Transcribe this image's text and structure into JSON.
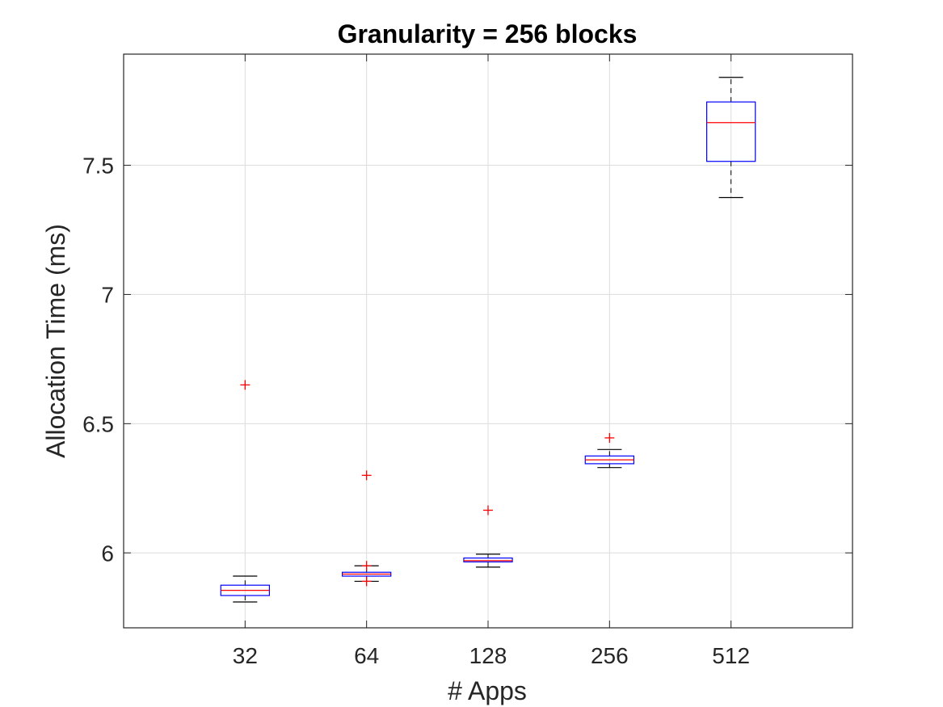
{
  "chart_data": {
    "type": "box",
    "title": "Granularity = 256 blocks",
    "xlabel": "# Apps",
    "ylabel": "Allocation Time (ms)",
    "categories": [
      "32",
      "64",
      "128",
      "256",
      "512"
    ],
    "ylim": [
      5.71,
      7.93
    ],
    "yticks": [
      6,
      6.5,
      7,
      7.5
    ],
    "ytick_labels": [
      "6",
      "6.5",
      "7",
      "7.5"
    ],
    "grid": true,
    "boxes": [
      {
        "category": "32",
        "whisker_low": 5.81,
        "q1": 5.835,
        "median": 5.855,
        "q3": 5.875,
        "whisker_high": 5.91,
        "outliers": [
          6.65
        ]
      },
      {
        "category": "64",
        "whisker_low": 5.89,
        "q1": 5.91,
        "median": 5.918,
        "q3": 5.925,
        "whisker_high": 5.95,
        "outliers": [
          6.3,
          5.95,
          5.89
        ]
      },
      {
        "category": "128",
        "whisker_low": 5.945,
        "q1": 5.965,
        "median": 5.97,
        "q3": 5.98,
        "whisker_high": 5.995,
        "outliers": [
          6.165
        ]
      },
      {
        "category": "256",
        "whisker_low": 6.33,
        "q1": 6.345,
        "median": 6.36,
        "q3": 6.375,
        "whisker_high": 6.4,
        "outliers": [
          6.445
        ]
      },
      {
        "category": "512",
        "whisker_low": 7.375,
        "q1": 7.515,
        "median": 7.665,
        "q3": 7.745,
        "whisker_high": 7.84,
        "outliers": []
      }
    ],
    "colors": {
      "box": "#0000ff",
      "median": "#ff0000",
      "whisker": "#000000",
      "outlier": "#ff0000",
      "grid": "#dcdcdc",
      "axis": "#262626"
    }
  }
}
